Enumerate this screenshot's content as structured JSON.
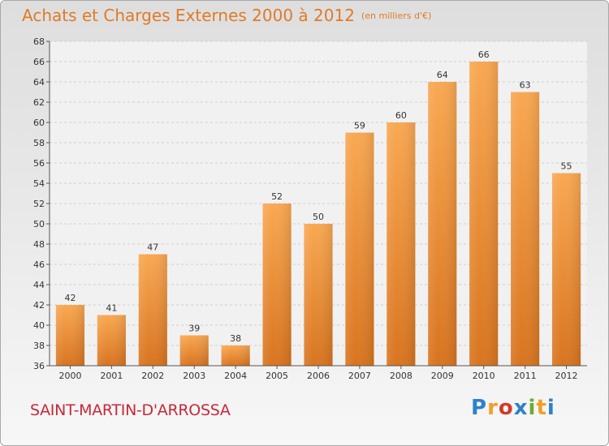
{
  "chart_data": {
    "type": "bar",
    "title": "Achats et Charges Externes 2000 à 2012",
    "subtitle": "(en milliers d'€)",
    "xlabel": "",
    "ylabel": "",
    "categories": [
      "2000",
      "2001",
      "2002",
      "2003",
      "2004",
      "2005",
      "2006",
      "2007",
      "2008",
      "2009",
      "2010",
      "2011",
      "2012"
    ],
    "values": [
      42,
      41,
      47,
      39,
      38,
      52,
      50,
      59,
      60,
      64,
      66,
      63,
      55
    ],
    "ylim": [
      36,
      68
    ],
    "yticks": [
      36,
      38,
      40,
      42,
      44,
      46,
      48,
      50,
      52,
      54,
      56,
      58,
      60,
      62,
      64,
      66,
      68
    ],
    "grid": true,
    "legend": "none",
    "bar_color_top": "#f9a852",
    "bar_color_bottom": "#d8741f"
  },
  "footer": {
    "commune": "SAINT-MARTIN-D'ARROSSA",
    "logo_letters": [
      "P",
      "r",
      "o",
      "x",
      "i",
      "t",
      "i"
    ],
    "logo_colors": [
      "#2f82c7",
      "#f0a026",
      "#d23a2a",
      "#2f82c7",
      "#6cab2f",
      "#f0a026",
      "#2f82c7"
    ]
  }
}
